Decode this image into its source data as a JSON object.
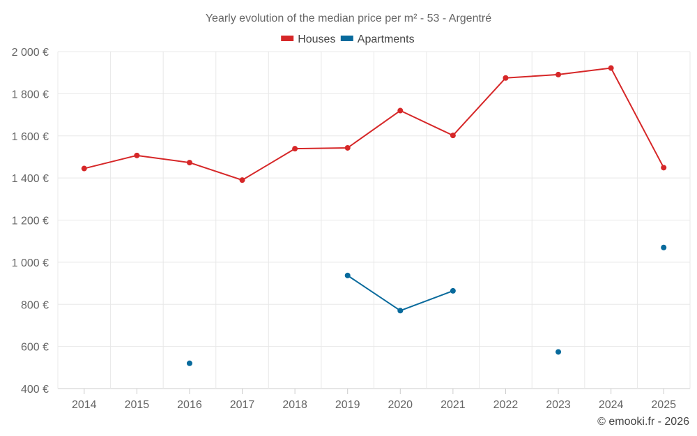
{
  "chart_data": {
    "type": "line",
    "title": "Yearly evolution of the median price per m² - 53 - Argentré",
    "categories": [
      "2014",
      "2015",
      "2016",
      "2017",
      "2018",
      "2019",
      "2020",
      "2021",
      "2022",
      "2023",
      "2024",
      "2025"
    ],
    "y_ticks": [
      400,
      600,
      800,
      1000,
      1200,
      1400,
      1600,
      1800,
      2000
    ],
    "y_tick_labels": [
      "400 €",
      "600 €",
      "800 €",
      "1 000 €",
      "1 200 €",
      "1 400 €",
      "1 600 €",
      "1 800 €",
      "2 000 €"
    ],
    "ylim": [
      400,
      2000
    ],
    "grid": true,
    "legend_position": "top-center",
    "series": [
      {
        "name": "Houses",
        "color": "#d62728",
        "values": [
          1445,
          1507,
          1473,
          1390,
          1539,
          1543,
          1720,
          1602,
          1875,
          1891,
          1922,
          1449
        ]
      },
      {
        "name": "Apartments",
        "color": "#086a9c",
        "values": [
          null,
          null,
          520,
          null,
          null,
          937,
          770,
          864,
          null,
          574,
          null,
          1070
        ]
      }
    ]
  },
  "credit": "© emooki.fr - 2026"
}
